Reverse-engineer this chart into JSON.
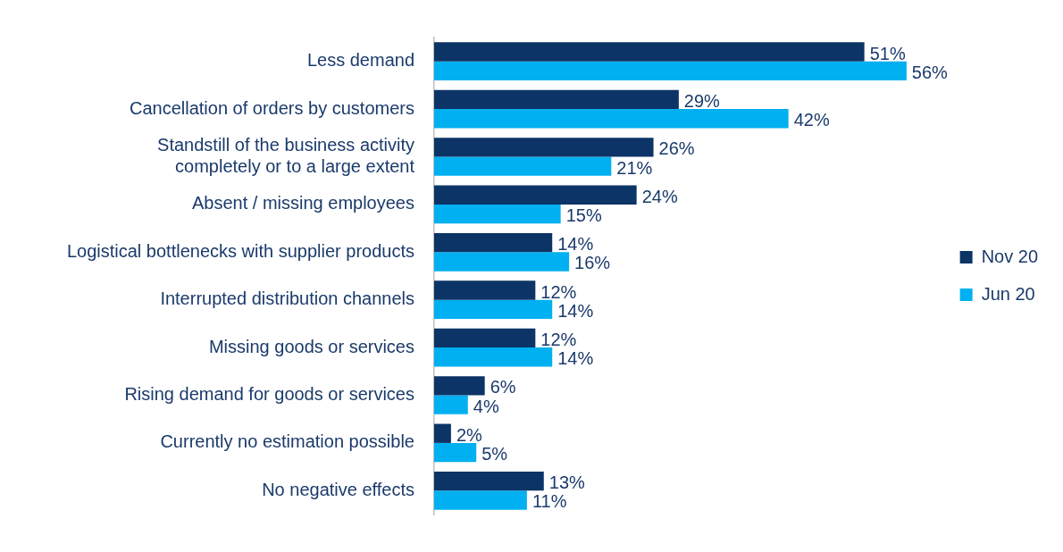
{
  "chart_data": {
    "type": "bar",
    "orientation": "horizontal",
    "categories": [
      "Less demand",
      "Cancellation of orders by customers",
      "Standstill of the business activity completely or to a large extent",
      "Absent / missing employees",
      "Logistical bottlenecks with supplier products",
      "Interrupted distribution channels",
      "Missing goods or services",
      "Rising demand for goods or services",
      "Currently no estimation possible",
      "No negative effects"
    ],
    "series": [
      {
        "name": "Nov 20",
        "color": "#0c3466",
        "values": [
          51,
          29,
          26,
          24,
          14,
          12,
          12,
          6,
          2,
          13
        ],
        "value_labels": [
          "51%",
          "29%",
          "26%",
          "24%",
          "14%",
          "12%",
          "12%",
          "6%",
          "2%",
          "13%"
        ]
      },
      {
        "name": "Jun 20",
        "color": "#00b0f0",
        "values": [
          56,
          42,
          21,
          15,
          16,
          14,
          14,
          4,
          5,
          11
        ],
        "value_labels": [
          "56%",
          "42%",
          "21%",
          "15%",
          "16%",
          "14%",
          "14%",
          "4%",
          "5%",
          "11%"
        ]
      }
    ],
    "tick_labels": "y",
    "legend": "right"
  }
}
